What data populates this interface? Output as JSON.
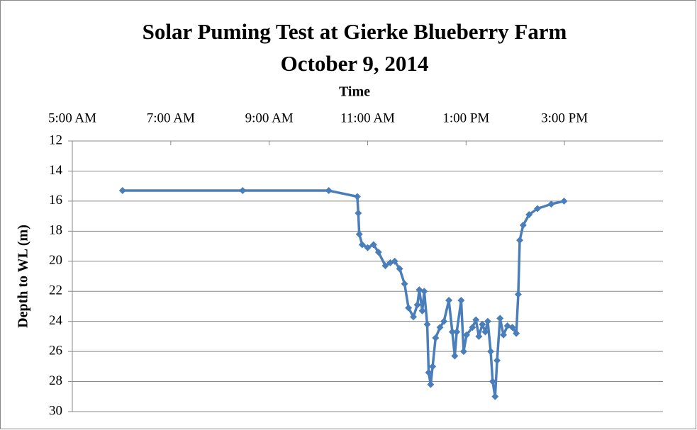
{
  "chart_data": {
    "type": "line",
    "title": "Solar Puming Test at Gierke Blueberry Farm",
    "subtitle": "October 9, 2014",
    "x_label": "Time",
    "y_label": "Depth to WL (m)",
    "xlim": [
      5,
      17
    ],
    "xticks": [
      {
        "value": 5,
        "label": "5:00 AM"
      },
      {
        "value": 7,
        "label": "7:00 AM"
      },
      {
        "value": 9,
        "label": "9:00 AM"
      },
      {
        "value": 11,
        "label": "11:00 AM"
      },
      {
        "value": 13,
        "label": "1:00 PM"
      },
      {
        "value": 15,
        "label": "3:00 PM"
      }
    ],
    "ylim": [
      12,
      30
    ],
    "yticks": [
      12,
      14,
      16,
      18,
      20,
      22,
      24,
      26,
      28,
      30
    ],
    "y_inverted": true,
    "x_axis_position": "top",
    "grid": true,
    "x": [
      6.02,
      8.46,
      10.21,
      10.79,
      10.81,
      10.83,
      10.89,
      11.0,
      11.12,
      11.22,
      11.36,
      11.46,
      11.55,
      11.65,
      11.75,
      11.83,
      11.93,
      12.01,
      12.05,
      12.11,
      12.15,
      12.21,
      12.24,
      12.28,
      12.32,
      12.38,
      12.47,
      12.55,
      12.65,
      12.72,
      12.77,
      12.81,
      12.9,
      12.95,
      13.01,
      13.13,
      13.2,
      13.26,
      13.33,
      13.39,
      13.44,
      13.5,
      13.54,
      13.59,
      13.63,
      13.69,
      13.76,
      13.84,
      13.94,
      14.02,
      14.06,
      14.09,
      14.16,
      14.28,
      14.45,
      14.73,
      14.99
    ],
    "series": [
      {
        "name": "Depth to WL",
        "color": "#4a7ebb",
        "values": [
          15.3,
          15.3,
          15.3,
          15.7,
          16.8,
          18.2,
          18.9,
          19.1,
          18.9,
          19.4,
          20.3,
          20.1,
          20.0,
          20.5,
          21.5,
          23.1,
          23.7,
          22.9,
          21.9,
          23.3,
          22.0,
          24.2,
          27.4,
          28.2,
          27.0,
          25.1,
          24.4,
          24.0,
          22.6,
          24.7,
          26.3,
          24.7,
          22.6,
          26.0,
          24.9,
          24.4,
          23.9,
          25.0,
          24.2,
          24.7,
          24.0,
          26.0,
          28.0,
          29.0,
          26.6,
          23.8,
          24.9,
          24.3,
          24.4,
          24.8,
          22.2,
          18.6,
          17.6,
          16.9,
          16.5,
          16.2,
          16.0
        ]
      }
    ]
  }
}
